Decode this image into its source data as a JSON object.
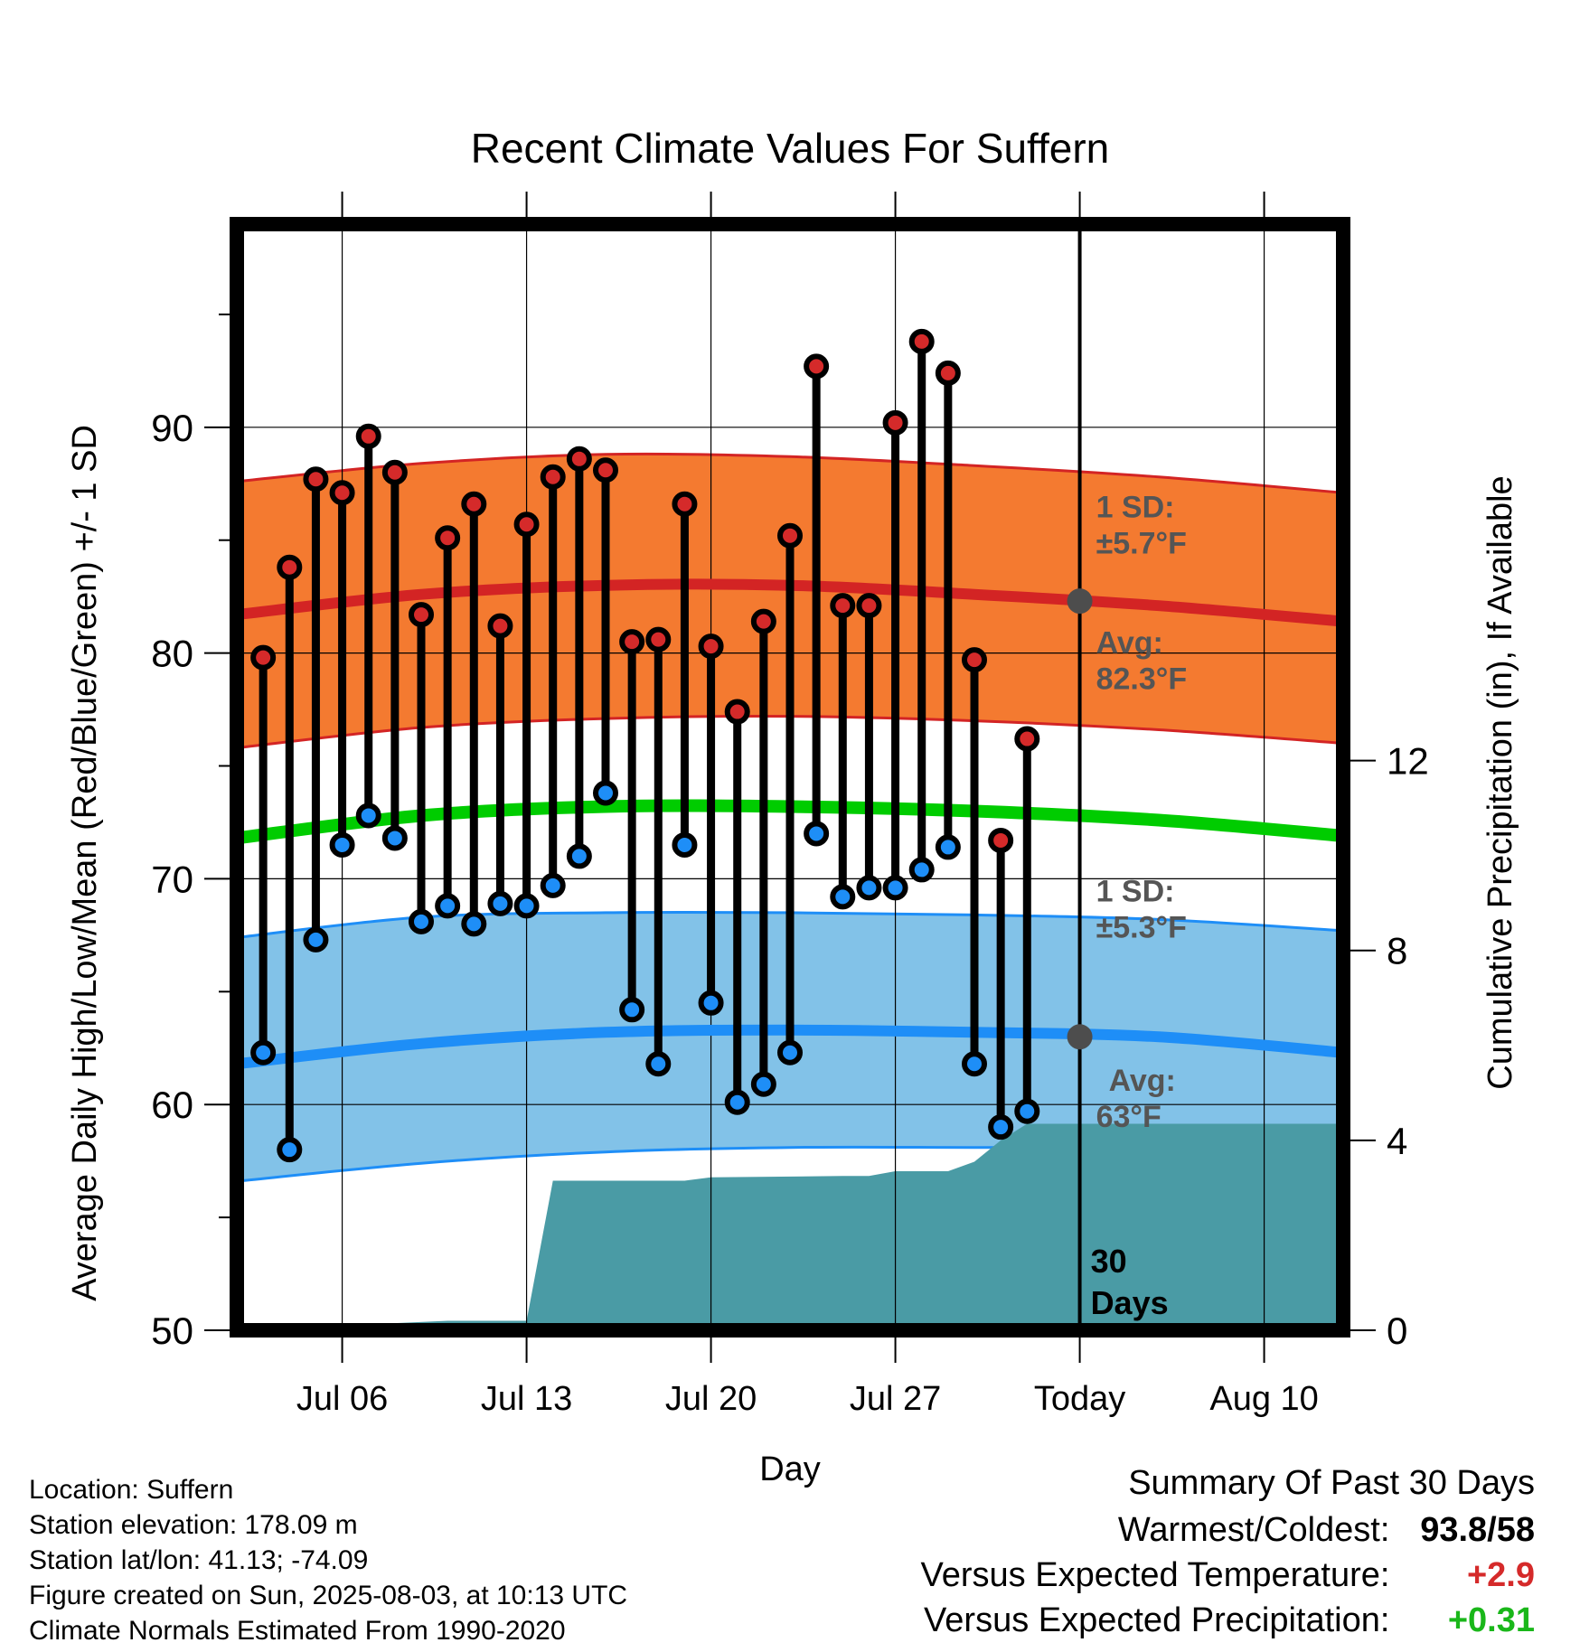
{
  "chart_data": {
    "type": "line",
    "title": "Recent Climate Values For Suffern",
    "xlabel": "Day",
    "ylabel": "Average Daily High/Low/Mean (Red/Blue/Green) +/- 1 SD",
    "y2label": "Cumulative Precipitation (in), If Available",
    "ylim": [
      50,
      99
    ],
    "y2lim": [
      0,
      23.3
    ],
    "xlim": [
      "2025-07-02",
      "2025-08-13"
    ],
    "x_ticks": [
      "Jul 06",
      "Jul 13",
      "Jul 20",
      "Jul 27",
      "Today",
      "Aug 10"
    ],
    "x_tick_dates": [
      "2025-07-06",
      "2025-07-13",
      "2025-07-20",
      "2025-07-27",
      "2025-08-03",
      "2025-08-10"
    ],
    "y_ticks": [
      50,
      60,
      70,
      80,
      90
    ],
    "y2_ticks": [
      0,
      4,
      8,
      12
    ],
    "grid": true,
    "colors": {
      "high_band": "#f47a30",
      "high_line": "#d32424",
      "low_band": "#82c2e8",
      "low_line": "#1e8ef7",
      "mean_line": "#00cc00",
      "precip": "#4a9ba5",
      "high_point": "#d52a2a",
      "low_point": "#1e8ef7",
      "warm_text": "#d52a2a",
      "wet_text": "#1ab71a",
      "annotation_text": "#555555"
    },
    "today": "2025-08-03",
    "today_label": "30\nDays",
    "normals_x": [
      "2025-07-02",
      "2025-07-09",
      "2025-07-16",
      "2025-07-23",
      "2025-07-30",
      "2025-08-06",
      "2025-08-13"
    ],
    "normal_high": [
      81.7,
      82.6,
      83.0,
      83.0,
      82.6,
      82.1,
      81.4
    ],
    "normal_high_sd_upper": [
      87.6,
      88.4,
      88.8,
      88.7,
      88.3,
      87.8,
      87.1
    ],
    "normal_high_sd_lower": [
      75.8,
      76.7,
      77.1,
      77.2,
      77.0,
      76.6,
      76.0
    ],
    "normal_mean": [
      71.8,
      72.8,
      73.2,
      73.2,
      73.0,
      72.6,
      71.9
    ],
    "normal_low": [
      61.8,
      62.7,
      63.2,
      63.3,
      63.2,
      63.0,
      62.3
    ],
    "normal_low_sd_upper": [
      67.4,
      68.3,
      68.5,
      68.5,
      68.4,
      68.2,
      67.7
    ],
    "normal_low_sd_lower": [
      56.6,
      57.4,
      57.9,
      58.1,
      58.1,
      58.1,
      58.0
    ],
    "annotations": [
      {
        "text": "1 SD:\n±5.7°F",
        "y": 86
      },
      {
        "text": "Avg:\n82.3°F",
        "y": 80,
        "marker_y": 82.3
      },
      {
        "text": "1 SD:\n±5.3°F",
        "y": 69
      },
      {
        "text": "Avg:\n63°F",
        "y": 60.6,
        "marker_y": 63
      }
    ],
    "days": [
      "2025-07-03",
      "2025-07-04",
      "2025-07-05",
      "2025-07-06",
      "2025-07-07",
      "2025-07-08",
      "2025-07-09",
      "2025-07-10",
      "2025-07-11",
      "2025-07-12",
      "2025-07-13",
      "2025-07-14",
      "2025-07-15",
      "2025-07-16",
      "2025-07-17",
      "2025-07-18",
      "2025-07-19",
      "2025-07-20",
      "2025-07-21",
      "2025-07-22",
      "2025-07-23",
      "2025-07-24",
      "2025-07-25",
      "2025-07-26",
      "2025-07-27",
      "2025-07-28",
      "2025-07-29",
      "2025-07-30",
      "2025-07-31",
      "2025-08-01",
      "2025-08-02"
    ],
    "highs": [
      79.8,
      83.8,
      87.7,
      87.1,
      89.6,
      88.0,
      81.7,
      85.1,
      86.6,
      81.2,
      85.7,
      87.8,
      88.6,
      88.1,
      80.5,
      80.6,
      86.6,
      80.3,
      77.4,
      81.4,
      85.2,
      92.7,
      82.1,
      82.1,
      90.2,
      93.8,
      92.4,
      79.7,
      71.7,
      76.2,
      null
    ],
    "lows": [
      62.3,
      58.0,
      67.3,
      71.5,
      72.8,
      71.8,
      68.1,
      68.8,
      68.0,
      68.9,
      68.8,
      69.7,
      71.0,
      73.8,
      64.2,
      61.8,
      71.5,
      64.5,
      60.1,
      60.9,
      62.3,
      72.0,
      69.2,
      69.6,
      69.6,
      70.4,
      71.4,
      61.8,
      59.0,
      59.7,
      null
    ],
    "precip_x": [
      "2025-07-02",
      "2025-07-06",
      "2025-07-07",
      "2025-07-08",
      "2025-07-10",
      "2025-07-12",
      "2025-07-13",
      "2025-07-14",
      "2025-07-15",
      "2025-07-19",
      "2025-07-20",
      "2025-07-25",
      "2025-07-26",
      "2025-07-27",
      "2025-07-29",
      "2025-07-30",
      "2025-07-31",
      "2025-08-01",
      "2025-08-13"
    ],
    "precip_cum": [
      0.0,
      0.0,
      0.05,
      0.15,
      0.2,
      0.2,
      0.2,
      3.15,
      3.15,
      3.15,
      3.22,
      3.25,
      3.25,
      3.35,
      3.35,
      3.55,
      4.0,
      4.35,
      4.35
    ],
    "summary": {
      "title": "Summary Of Past 30 Days",
      "rows": [
        {
          "label": "Warmest/Coldest:",
          "value": "93.8/58",
          "color": "#000000"
        },
        {
          "label": "Versus Expected Temperature:",
          "value": "+2.9",
          "color": "#d52a2a"
        },
        {
          "label": "Versus Expected Precipitation:",
          "value": "+0.31",
          "color": "#1ab71a"
        }
      ]
    }
  },
  "meta": [
    "Location: Suffern",
    "Station elevation: 178.09 m",
    "Station lat/lon: 41.13; -74.09",
    "Figure created on Sun, 2025-08-03, at 10:13 UTC",
    "Climate Normals Estimated From 1990-2020"
  ]
}
